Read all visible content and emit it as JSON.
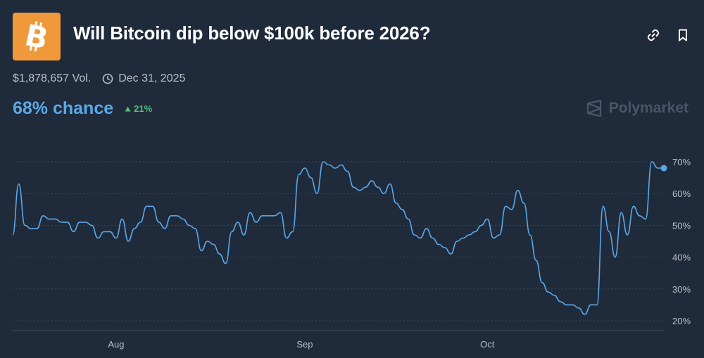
{
  "market": {
    "title": "Will Bitcoin dip below $100k before 2026?",
    "volume": "$1,878,657 Vol.",
    "end_date": "Dec 31, 2025",
    "chance": "68% chance",
    "change": "21%",
    "brand": "Polymarket",
    "logo_icon": "bitcoin-icon",
    "logo_color": "#f0993a",
    "accent_color": "#5aa8e8",
    "up_color": "#4fc27a"
  },
  "actions": [
    {
      "name": "link-icon"
    },
    {
      "name": "bookmark-icon"
    }
  ],
  "chart_data": {
    "type": "line",
    "series": [
      {
        "x": [
          "2025-07-15",
          "2025-07-16",
          "2025-07-17",
          "2025-07-18",
          "2025-07-19",
          "2025-07-20",
          "2025-07-21",
          "2025-07-22",
          "2025-07-23",
          "2025-07-24",
          "2025-07-25",
          "2025-07-26",
          "2025-07-27",
          "2025-07-28",
          "2025-07-29",
          "2025-07-30",
          "2025-07-31",
          "2025-08-01",
          "2025-08-02",
          "2025-08-03",
          "2025-08-04",
          "2025-08-05",
          "2025-08-06",
          "2025-08-07",
          "2025-08-08",
          "2025-08-09",
          "2025-08-10",
          "2025-08-11",
          "2025-08-12",
          "2025-08-13",
          "2025-08-14",
          "2025-08-15",
          "2025-08-16",
          "2025-08-17",
          "2025-08-18",
          "2025-08-19",
          "2025-08-20",
          "2025-08-21",
          "2025-08-22",
          "2025-08-23",
          "2025-08-24",
          "2025-08-25",
          "2025-08-26",
          "2025-08-27",
          "2025-08-28",
          "2025-08-29",
          "2025-08-30",
          "2025-08-31",
          "2025-09-01",
          "2025-09-02",
          "2025-09-03",
          "2025-09-04",
          "2025-09-05",
          "2025-09-06",
          "2025-09-07",
          "2025-09-08",
          "2025-09-09",
          "2025-09-10",
          "2025-09-11",
          "2025-09-12",
          "2025-09-13",
          "2025-09-14",
          "2025-09-15",
          "2025-09-16",
          "2025-09-17",
          "2025-09-18",
          "2025-09-19",
          "2025-09-20",
          "2025-09-21",
          "2025-09-22",
          "2025-09-23",
          "2025-09-24",
          "2025-09-25",
          "2025-09-26",
          "2025-09-27",
          "2025-09-28",
          "2025-09-29",
          "2025-09-30",
          "2025-10-01",
          "2025-10-02",
          "2025-10-03",
          "2025-10-04",
          "2025-10-05",
          "2025-10-06",
          "2025-10-07",
          "2025-10-08",
          "2025-10-09",
          "2025-10-10",
          "2025-10-11",
          "2025-10-12",
          "2025-10-13",
          "2025-10-14",
          "2025-10-15",
          "2025-10-16",
          "2025-10-17",
          "2025-10-18",
          "2025-10-19",
          "2025-10-20",
          "2025-10-21",
          "2025-10-22",
          "2025-10-23",
          "2025-10-24",
          "2025-10-25",
          "2025-10-26",
          "2025-10-27",
          "2025-10-28",
          "2025-10-29",
          "2025-10-30"
        ],
        "values": [
          47,
          63,
          50,
          49,
          49,
          53,
          52,
          52,
          51,
          51,
          48,
          51,
          51,
          50,
          46,
          48,
          48,
          46,
          52,
          45,
          49,
          51,
          56,
          56,
          51,
          49,
          53,
          53,
          52,
          50,
          49,
          42,
          45,
          44,
          41,
          38,
          48,
          51,
          47,
          54,
          51,
          53,
          53,
          53,
          54,
          46,
          48,
          66,
          68,
          65,
          60,
          70,
          69,
          68,
          69,
          67,
          62,
          61,
          62,
          64,
          62,
          60,
          63,
          57,
          55,
          52,
          47,
          46,
          49,
          46,
          44,
          43,
          41,
          45,
          46,
          47,
          48,
          50,
          52,
          46,
          47,
          56,
          55,
          61,
          57,
          47,
          39,
          32,
          29,
          28,
          26,
          25,
          25,
          24,
          22,
          25,
          25,
          56,
          48,
          40,
          54,
          47,
          56,
          53,
          52,
          70,
          68,
          68
        ]
      }
    ],
    "ylim": [
      20,
      70
    ],
    "y_ticks": [
      "20%",
      "30%",
      "40%",
      "50%",
      "60%",
      "70%"
    ],
    "x_ticks": [
      {
        "label": "Aug",
        "x": "2025-08-01"
      },
      {
        "label": "Sep",
        "x": "2025-09-01"
      },
      {
        "label": "Oct",
        "x": "2025-10-01"
      }
    ],
    "grid": "horizontal-dotted",
    "line_color": "#5aa8e8"
  }
}
